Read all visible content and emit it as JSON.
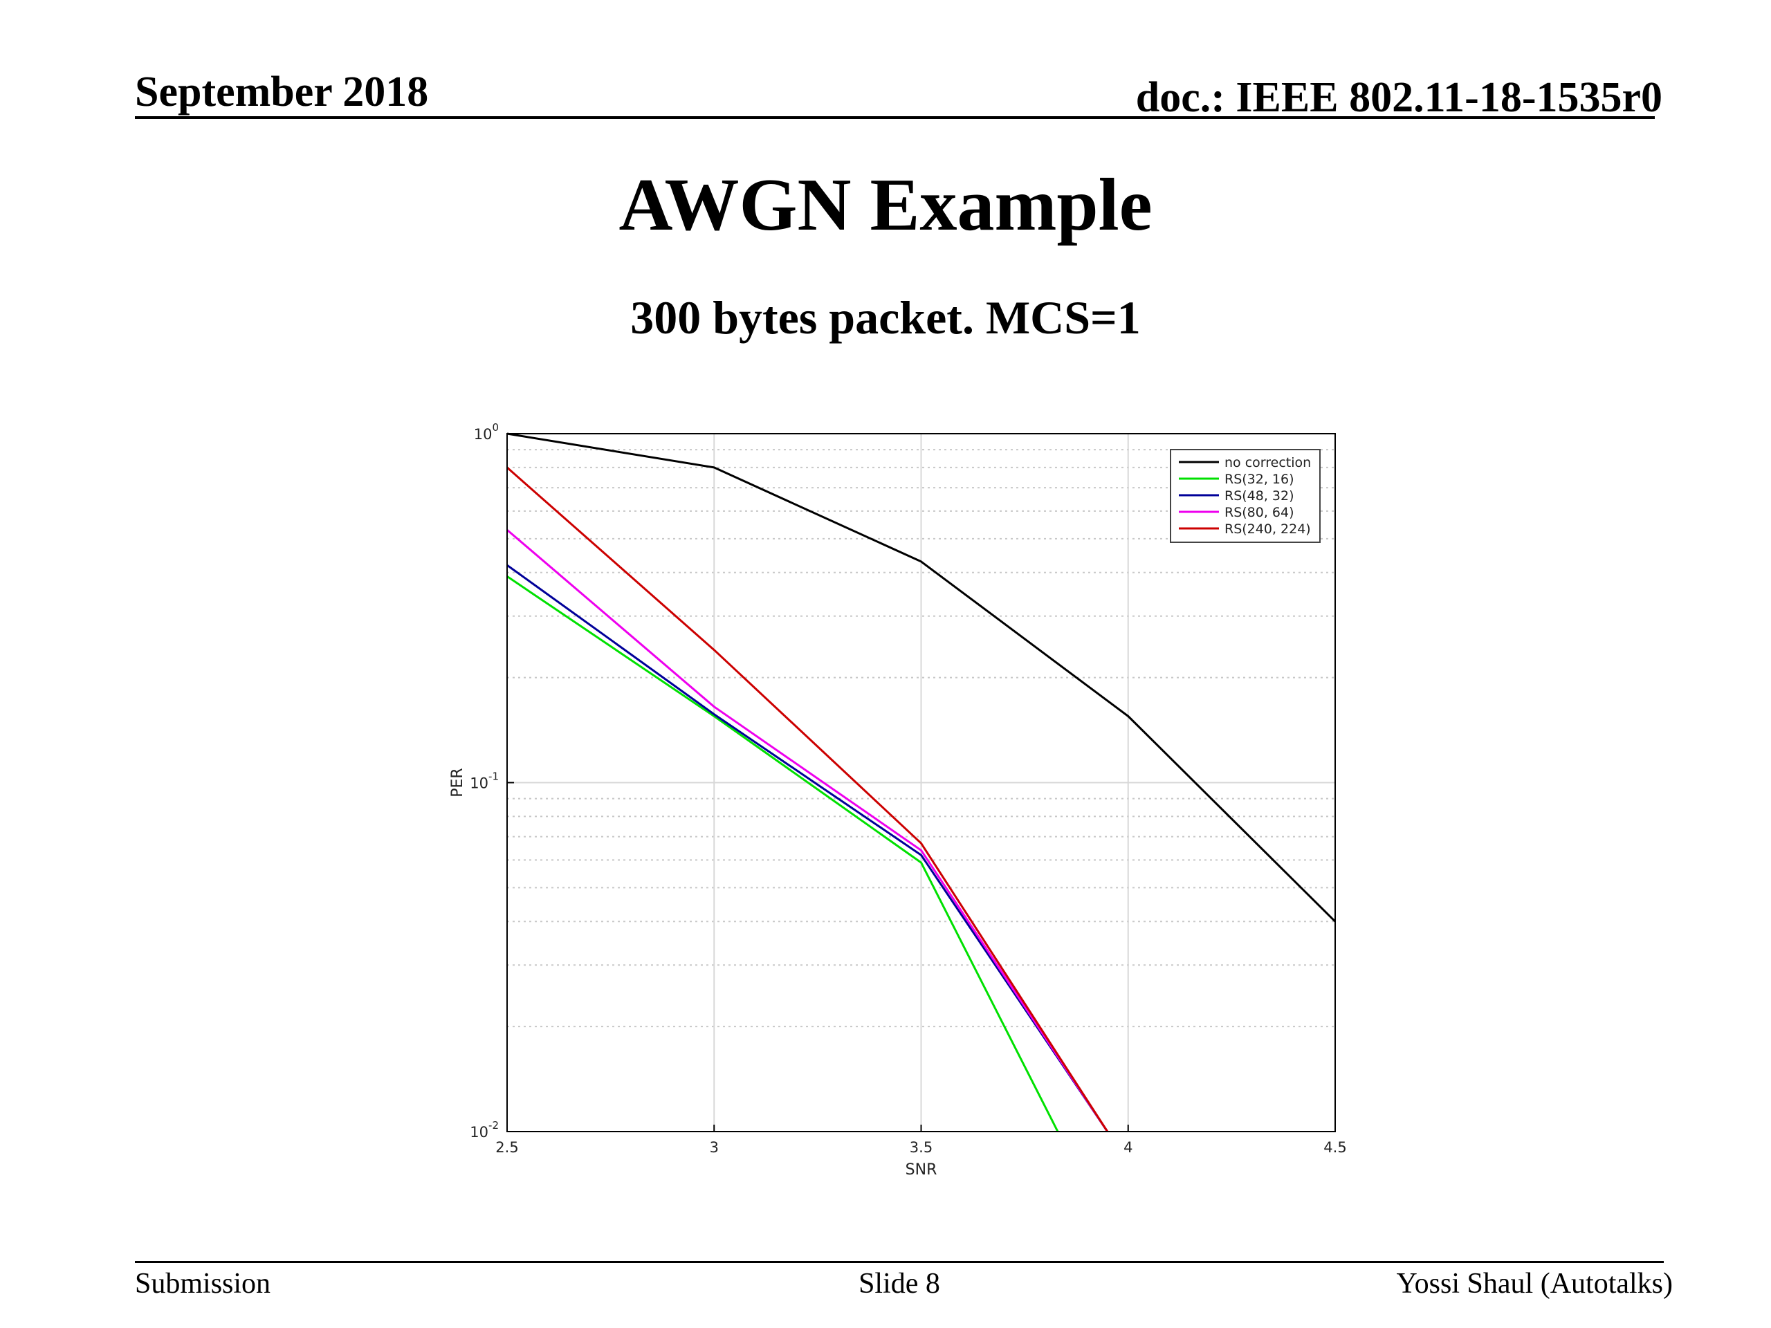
{
  "header": {
    "date": "September 2018",
    "doc": "doc.: IEEE 802.11-18-1535r0"
  },
  "slide": {
    "title": "AWGN Example",
    "subtitle": "300 bytes packet. MCS=1"
  },
  "footer": {
    "left": "Submission",
    "center": "Slide 8",
    "right": "Yossi Shaul (Autotalks)"
  },
  "chart_data": {
    "type": "line",
    "xlabel": "SNR",
    "ylabel": "PER",
    "xlim": [
      2.5,
      4.5
    ],
    "ylim": [
      0.01,
      1
    ],
    "yscale": "log",
    "grid": true,
    "legend_position": "top-right",
    "x_ticks": [
      "2.5",
      "3",
      "3.5",
      "4",
      "4.5"
    ],
    "y_ticks": [
      {
        "base": "10",
        "exp": "0",
        "value": 1
      },
      {
        "base": "10",
        "exp": "-1",
        "value": 0.1
      },
      {
        "base": "10",
        "exp": "-2",
        "value": 0.01
      }
    ],
    "series": [
      {
        "name": "no correction",
        "color": "#000000",
        "x": [
          2.5,
          3,
          3.5,
          4,
          4.5
        ],
        "y": [
          1.0,
          0.8,
          0.43,
          0.155,
          0.04
        ]
      },
      {
        "name": "RS(32, 16)",
        "color": "#00e000",
        "x": [
          2.5,
          3,
          3.5,
          3.83
        ],
        "y": [
          0.39,
          0.155,
          0.059,
          0.01
        ]
      },
      {
        "name": "RS(48, 32)",
        "color": "#000099",
        "x": [
          2.5,
          3,
          3.5,
          3.95
        ],
        "y": [
          0.42,
          0.157,
          0.062,
          0.01
        ]
      },
      {
        "name": "RS(80, 64)",
        "color": "#ee00ee",
        "x": [
          2.5,
          3,
          3.5,
          3.95
        ],
        "y": [
          0.53,
          0.165,
          0.064,
          0.01
        ]
      },
      {
        "name": "RS(240, 224)",
        "color": "#cc0000",
        "x": [
          2.5,
          3,
          3.5,
          3.95
        ],
        "y": [
          0.8,
          0.24,
          0.067,
          0.01
        ]
      }
    ]
  }
}
